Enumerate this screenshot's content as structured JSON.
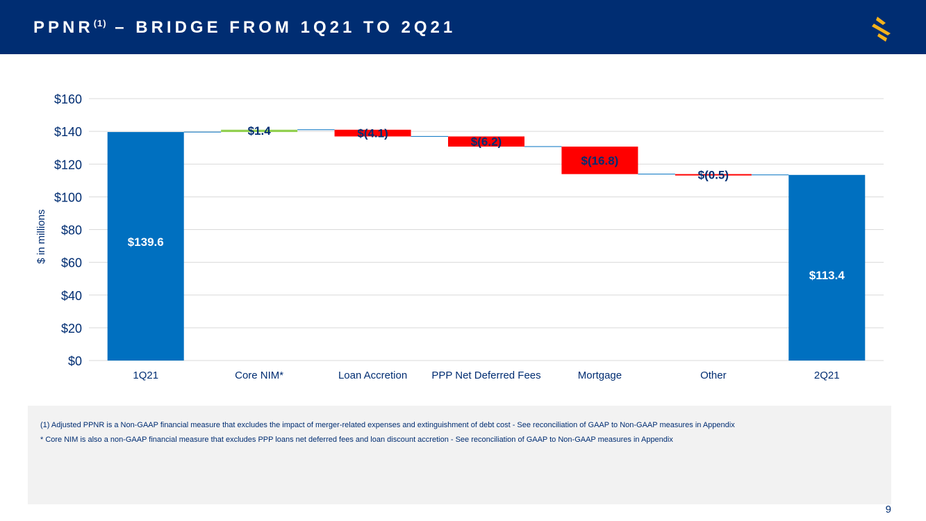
{
  "slide": {
    "title_main": "PPNR",
    "title_sup": "(1)",
    "title_rest": " – BRIDGE FROM 1Q21 TO 2Q21",
    "footnote_1": "(1)    Adjusted PPNR is a Non-GAAP financial measure that excludes the impact of merger-related expenses and extinguishment of debt cost - See reconciliation of GAAP to Non-GAAP measures in Appendix",
    "footnote_2": "* Core NIM is also a non-GAAP financial measure that excludes PPP loans net deferred fees and loan discount accretion - See reconciliation of GAAP to Non-GAAP measures in Appendix",
    "page_number": "9",
    "logo_icon": "s-logo-icon"
  },
  "colors": {
    "header": "#002d72",
    "total": "#0070c0",
    "increase": "#92d050",
    "decrease": "#ff0000",
    "axis_text": "#002d72",
    "grid": "#d9d9d9",
    "connector": "#0070c0",
    "logo": "#f5b21b"
  },
  "chart_data": {
    "type": "waterfall",
    "title": "",
    "xlabel": "",
    "ylabel": "$ in millions",
    "ylim": [
      0,
      160
    ],
    "yticks": [
      0,
      20,
      40,
      60,
      80,
      100,
      120,
      140,
      160
    ],
    "ytick_labels": [
      "$0",
      "$20",
      "$40",
      "$60",
      "$80",
      "$100",
      "$120",
      "$140",
      "$160"
    ],
    "grid": true,
    "legend": "none",
    "categories": [
      "1Q21",
      "Core NIM*",
      "Loan Accretion",
      "PPP Net Deferred Fees",
      "Mortgage",
      "Other",
      "2Q21"
    ],
    "values": [
      139.6,
      1.4,
      -4.1,
      -6.2,
      -16.8,
      -0.5,
      113.4
    ],
    "kinds": [
      "total",
      "increase",
      "decrease",
      "decrease",
      "decrease",
      "decrease",
      "total"
    ],
    "data_labels": [
      "$139.6",
      "$1.4",
      "$(4.1)",
      "$(6.2)",
      "$(16.8)",
      "$(0.5)",
      "$113.4"
    ]
  }
}
